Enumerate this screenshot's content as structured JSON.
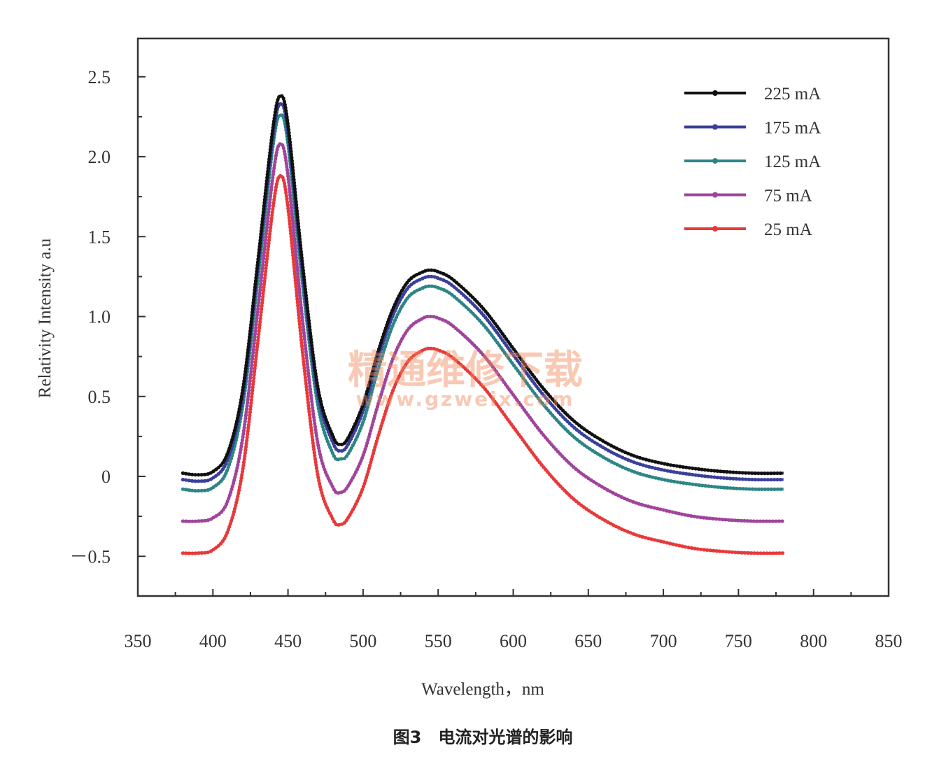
{
  "chart_data": {
    "type": "line",
    "xlabel": "Wavelength，nm",
    "ylabel": "Relativity Intensity a.u",
    "xlim": [
      350,
      850
    ],
    "ylim": [
      -0.7,
      2.75
    ],
    "x_ticks": [
      350,
      400,
      450,
      500,
      550,
      600,
      650,
      700,
      750,
      800,
      850
    ],
    "x_tick_labels": [
      "350",
      "400",
      "450",
      "500",
      "550",
      "600",
      "650",
      "700",
      "750",
      "800",
      "850"
    ],
    "y_ticks": [
      -0.5,
      0,
      0.5,
      1.0,
      1.5,
      2.0,
      2.5
    ],
    "y_tick_labels": [
      "－0.5",
      "0",
      "0.5",
      "1.0",
      "1.5",
      "2.0",
      "2.5"
    ],
    "legend_position": "top-right",
    "grid": false,
    "x": [
      380,
      390,
      400,
      410,
      420,
      430,
      440,
      445,
      450,
      460,
      470,
      480,
      485,
      490,
      500,
      510,
      520,
      530,
      540,
      545,
      550,
      560,
      580,
      600,
      620,
      640,
      660,
      680,
      700,
      720,
      740,
      760,
      780
    ],
    "series": [
      {
        "name": "225 mA",
        "color": "#111111",
        "values": [
          0.02,
          0.01,
          0.03,
          0.15,
          0.55,
          1.35,
          2.18,
          2.38,
          2.2,
          1.3,
          0.55,
          0.25,
          0.2,
          0.24,
          0.45,
          0.78,
          1.05,
          1.22,
          1.28,
          1.29,
          1.28,
          1.23,
          1.05,
          0.8,
          0.55,
          0.35,
          0.22,
          0.13,
          0.08,
          0.05,
          0.03,
          0.02,
          0.02
        ]
      },
      {
        "name": "175 mA",
        "color": "#3a3f9a",
        "values": [
          -0.02,
          -0.03,
          -0.01,
          0.11,
          0.51,
          1.31,
          2.13,
          2.33,
          2.15,
          1.25,
          0.51,
          0.21,
          0.16,
          0.2,
          0.41,
          0.74,
          1.01,
          1.18,
          1.24,
          1.25,
          1.24,
          1.19,
          1.01,
          0.76,
          0.51,
          0.31,
          0.18,
          0.09,
          0.04,
          0.01,
          -0.01,
          -0.02,
          -0.02
        ]
      },
      {
        "name": "125 mA",
        "color": "#2e8585",
        "values": [
          -0.08,
          -0.09,
          -0.07,
          0.05,
          0.45,
          1.24,
          2.07,
          2.26,
          2.08,
          1.18,
          0.44,
          0.14,
          0.11,
          0.14,
          0.34,
          0.67,
          0.95,
          1.12,
          1.18,
          1.19,
          1.18,
          1.13,
          0.95,
          0.7,
          0.45,
          0.25,
          0.12,
          0.03,
          -0.02,
          -0.05,
          -0.07,
          -0.08,
          -0.08
        ]
      },
      {
        "name": "75 mA",
        "color": "#a0449c",
        "values": [
          -0.28,
          -0.28,
          -0.26,
          -0.15,
          0.25,
          1.05,
          1.88,
          2.08,
          1.88,
          0.95,
          0.2,
          -0.07,
          -0.1,
          -0.06,
          0.13,
          0.45,
          0.74,
          0.92,
          0.99,
          1.0,
          0.99,
          0.94,
          0.76,
          0.51,
          0.26,
          0.06,
          -0.07,
          -0.16,
          -0.21,
          -0.25,
          -0.27,
          -0.28,
          -0.28
        ]
      },
      {
        "name": "25 mA",
        "color": "#e8393a",
        "values": [
          -0.48,
          -0.48,
          -0.46,
          -0.34,
          0.05,
          0.85,
          1.68,
          1.88,
          1.68,
          0.75,
          0.0,
          -0.27,
          -0.3,
          -0.26,
          -0.07,
          0.25,
          0.54,
          0.72,
          0.79,
          0.8,
          0.79,
          0.74,
          0.56,
          0.31,
          0.06,
          -0.14,
          -0.27,
          -0.36,
          -0.41,
          -0.45,
          -0.47,
          -0.48,
          -0.48
        ]
      }
    ]
  },
  "watermark": {
    "main": "精通维修下载",
    "url": "www.gzweix.com"
  },
  "caption": "图3　电流对光谱的影响"
}
